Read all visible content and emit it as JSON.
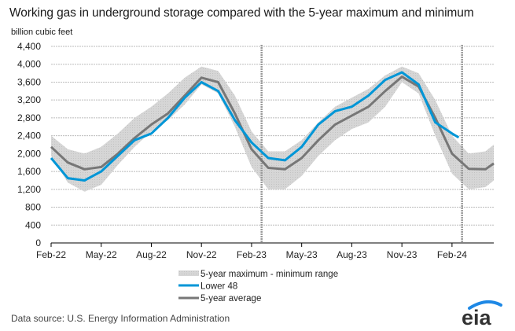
{
  "title": "Working gas in underground  storage compared with the 5-year maximum and minimum",
  "source": "Data source:  U.S. Energy Information Administration",
  "logo_text": "eia",
  "colors": {
    "lower48": "#0096d7",
    "avg": "#777777",
    "range": "#d4d4d4",
    "grid": "#bbbbbb",
    "logo_arc": "#1e88e5",
    "logo_text": "#333333"
  },
  "chart_data": {
    "type": "area",
    "title": "Working gas in underground  storage compared with the 5-year maximum and minimum",
    "ylabel": "billion cubic feet",
    "xlabel": "",
    "ylim": [
      0,
      4400
    ],
    "yticks": [
      0,
      400,
      800,
      1200,
      1600,
      2000,
      2400,
      2800,
      3200,
      3600,
      4000,
      4400
    ],
    "ytick_labels": [
      "0",
      "400",
      "800",
      "1,200",
      "1,600",
      "2,000",
      "2,400",
      "2,800",
      "3,200",
      "3,600",
      "4,000",
      "4,400"
    ],
    "x_unit": "months since Feb-22",
    "xlim": [
      0,
      26.5
    ],
    "xticks": [
      0,
      3,
      6,
      9,
      12,
      15,
      18,
      21,
      24
    ],
    "xtick_labels": [
      "Feb-22",
      "May-22",
      "Aug-22",
      "Nov-22",
      "Feb-23",
      "May-23",
      "Aug-23",
      "Nov-23",
      "Feb-24"
    ],
    "grid": true,
    "legend_position": "bottom",
    "vertical_markers": [
      12.6,
      24.6
    ],
    "x": [
      0,
      1,
      2,
      3,
      4,
      5,
      6,
      7,
      8,
      9,
      10,
      11,
      12,
      13,
      14,
      15,
      16,
      17,
      18,
      19,
      20,
      21,
      22,
      23,
      24,
      25,
      26,
      26.5
    ],
    "series": [
      {
        "name": "5-year maximum - minimum range",
        "kind": "band",
        "max": [
          2400,
          2100,
          2000,
          2150,
          2450,
          2800,
          3050,
          3350,
          3700,
          3950,
          3850,
          3300,
          2500,
          2050,
          2050,
          2300,
          2700,
          3050,
          3250,
          3450,
          3750,
          3950,
          3800,
          3200,
          2400,
          2000,
          2050,
          2200
        ],
        "min": [
          1950,
          1350,
          1150,
          1300,
          1750,
          2150,
          2500,
          2750,
          3100,
          3550,
          3350,
          2600,
          1700,
          1200,
          1200,
          1500,
          1950,
          2300,
          2550,
          2700,
          3050,
          3600,
          3350,
          2400,
          1550,
          1200,
          1250,
          1400
        ]
      },
      {
        "name": "Lower 48",
        "kind": "line",
        "values": [
          1900,
          1450,
          1400,
          1600,
          1950,
          2300,
          2450,
          2800,
          3250,
          3600,
          3400,
          2750,
          2250,
          1900,
          1850,
          2150,
          2650,
          2950,
          3050,
          3300,
          3650,
          3820,
          3550,
          2700,
          2450,
          null,
          null,
          null
        ],
        "last_point": {
          "x": 24.4,
          "y": 2360
        }
      },
      {
        "name": "5-year average",
        "kind": "line",
        "values": [
          2150,
          1800,
          1650,
          1700,
          2000,
          2350,
          2650,
          2900,
          3300,
          3700,
          3600,
          2900,
          2100,
          1680,
          1650,
          1900,
          2300,
          2650,
          2850,
          3050,
          3400,
          3720,
          3500,
          2800,
          2000,
          1660,
          1650,
          1780
        ]
      }
    ],
    "legend": [
      "5-year maximum - minimum range",
      "Lower 48",
      "5-year average"
    ]
  }
}
